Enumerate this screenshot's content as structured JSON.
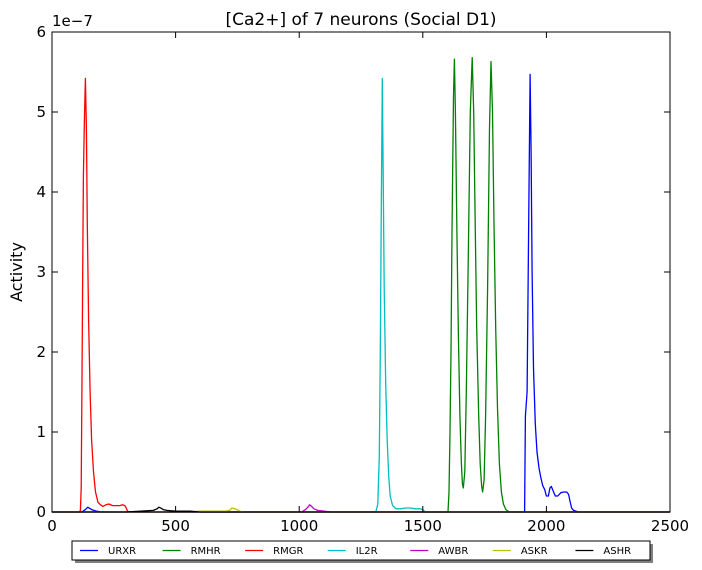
{
  "chart_data": {
    "type": "line",
    "title": "[Ca2+] of 7 neurons (Social D1)",
    "xlabel": "",
    "ylabel": "Activity",
    "xlim": [
      0,
      2500
    ],
    "ylim": [
      0,
      6
    ],
    "x_ticks": [
      0,
      500,
      1000,
      1500,
      2000,
      2500
    ],
    "y_ticks": [
      0,
      1,
      2,
      3,
      4,
      5,
      6
    ],
    "y_scale_label": "1e−7",
    "y_multiplier": 1e-07,
    "grid": false,
    "legend": "bottom-outside",
    "series": [
      {
        "name": "URXR",
        "color": "#0000ff",
        "points": [
          [
            0,
            0
          ],
          [
            120,
            0
          ],
          [
            135,
            0.03
          ],
          [
            145,
            0.06
          ],
          [
            160,
            0.03
          ],
          [
            180,
            0.01
          ],
          [
            200,
            0
          ],
          [
            1900,
            0
          ],
          [
            1912,
            0
          ],
          [
            1915,
            1.2
          ],
          [
            1922,
            1.5
          ],
          [
            1928,
            3.5
          ],
          [
            1934,
            5.47
          ],
          [
            1938,
            4.5
          ],
          [
            1942,
            3.0
          ],
          [
            1948,
            1.8
          ],
          [
            1955,
            1.1
          ],
          [
            1962,
            0.75
          ],
          [
            1970,
            0.55
          ],
          [
            1978,
            0.42
          ],
          [
            1985,
            0.33
          ],
          [
            1993,
            0.28
          ],
          [
            2000,
            0.2
          ],
          [
            2008,
            0.2
          ],
          [
            2014,
            0.3
          ],
          [
            2020,
            0.32
          ],
          [
            2028,
            0.26
          ],
          [
            2036,
            0.2
          ],
          [
            2046,
            0.2
          ],
          [
            2058,
            0.24
          ],
          [
            2070,
            0.25
          ],
          [
            2082,
            0.25
          ],
          [
            2090,
            0.22
          ],
          [
            2096,
            0.13
          ],
          [
            2102,
            0.05
          ],
          [
            2110,
            0.02
          ],
          [
            2130,
            0
          ],
          [
            2500,
            0
          ]
        ]
      },
      {
        "name": "RMHR",
        "color": "#008000",
        "points": [
          [
            0,
            0
          ],
          [
            1598,
            0
          ],
          [
            1602,
            0
          ],
          [
            1606,
            0.25
          ],
          [
            1610,
            1.0
          ],
          [
            1614,
            2.0
          ],
          [
            1618,
            3.5
          ],
          [
            1624,
            5.2
          ],
          [
            1628,
            5.66
          ],
          [
            1632,
            5.0
          ],
          [
            1638,
            3.5
          ],
          [
            1644,
            2.2
          ],
          [
            1650,
            1.2
          ],
          [
            1656,
            0.6
          ],
          [
            1660,
            0.35
          ],
          [
            1664,
            0.3
          ],
          [
            1670,
            0.5
          ],
          [
            1676,
            1.5
          ],
          [
            1684,
            3.2
          ],
          [
            1692,
            5.0
          ],
          [
            1700,
            5.68
          ],
          [
            1706,
            5.0
          ],
          [
            1712,
            3.6
          ],
          [
            1718,
            2.3
          ],
          [
            1726,
            1.2
          ],
          [
            1732,
            0.6
          ],
          [
            1738,
            0.33
          ],
          [
            1742,
            0.25
          ],
          [
            1748,
            0.4
          ],
          [
            1754,
            1.2
          ],
          [
            1762,
            2.8
          ],
          [
            1770,
            4.8
          ],
          [
            1776,
            5.63
          ],
          [
            1782,
            5.0
          ],
          [
            1788,
            3.6
          ],
          [
            1795,
            2.3
          ],
          [
            1802,
            1.3
          ],
          [
            1810,
            0.6
          ],
          [
            1818,
            0.25
          ],
          [
            1826,
            0.1
          ],
          [
            1836,
            0.03
          ],
          [
            1850,
            0
          ],
          [
            2500,
            0
          ]
        ]
      },
      {
        "name": "RMGR",
        "color": "#ff0000",
        "points": [
          [
            0,
            0
          ],
          [
            110,
            0
          ],
          [
            115,
            0.02
          ],
          [
            118,
            0.3
          ],
          [
            121,
            1.5
          ],
          [
            124,
            3.0
          ],
          [
            127,
            4.2
          ],
          [
            131,
            4.9
          ],
          [
            135,
            5.42
          ],
          [
            139,
            4.8
          ],
          [
            143,
            3.6
          ],
          [
            148,
            2.4
          ],
          [
            154,
            1.5
          ],
          [
            160,
            0.9
          ],
          [
            168,
            0.5
          ],
          [
            176,
            0.25
          ],
          [
            186,
            0.12
          ],
          [
            196,
            0.09
          ],
          [
            206,
            0.07
          ],
          [
            218,
            0.09
          ],
          [
            230,
            0.1
          ],
          [
            245,
            0.08
          ],
          [
            260,
            0.08
          ],
          [
            275,
            0.08
          ],
          [
            285,
            0.09
          ],
          [
            295,
            0.08
          ],
          [
            300,
            0.05
          ],
          [
            306,
            0.01
          ],
          [
            315,
            0
          ],
          [
            2500,
            0
          ]
        ]
      },
      {
        "name": "IL2R",
        "color": "#00bfbf",
        "points": [
          [
            0,
            0
          ],
          [
            1310,
            0
          ],
          [
            1318,
            0.1
          ],
          [
            1324,
            0.7
          ],
          [
            1328,
            2.0
          ],
          [
            1332,
            3.8
          ],
          [
            1336,
            5.42
          ],
          [
            1340,
            4.2
          ],
          [
            1344,
            2.8
          ],
          [
            1350,
            1.6
          ],
          [
            1356,
            0.9
          ],
          [
            1362,
            0.45
          ],
          [
            1368,
            0.2
          ],
          [
            1378,
            0.08
          ],
          [
            1392,
            0.04
          ],
          [
            1410,
            0.04
          ],
          [
            1430,
            0.05
          ],
          [
            1450,
            0.05
          ],
          [
            1470,
            0.04
          ],
          [
            1490,
            0.04
          ],
          [
            1500,
            0.03
          ],
          [
            1510,
            0
          ],
          [
            2500,
            0
          ]
        ]
      },
      {
        "name": "AWBR",
        "color": "#bf00bf",
        "points": [
          [
            0,
            0
          ],
          [
            1000,
            0
          ],
          [
            1010,
            0
          ],
          [
            1025,
            0.03
          ],
          [
            1035,
            0.06
          ],
          [
            1042,
            0.09
          ],
          [
            1050,
            0.07
          ],
          [
            1060,
            0.04
          ],
          [
            1075,
            0.02
          ],
          [
            1100,
            0.01
          ],
          [
            1130,
            0
          ],
          [
            2500,
            0
          ]
        ]
      },
      {
        "name": "ASKR",
        "color": "#bfbf00",
        "points": [
          [
            0,
            0
          ],
          [
            560,
            0
          ],
          [
            600,
            0.01
          ],
          [
            700,
            0.01
          ],
          [
            718,
            0.02
          ],
          [
            728,
            0.05
          ],
          [
            738,
            0.04
          ],
          [
            748,
            0.03
          ],
          [
            760,
            0.01
          ],
          [
            775,
            0
          ],
          [
            2500,
            0
          ]
        ]
      },
      {
        "name": "ASHR",
        "color": "#000000",
        "points": [
          [
            0,
            0
          ],
          [
            300,
            0
          ],
          [
            360,
            0.01
          ],
          [
            410,
            0.02
          ],
          [
            425,
            0.04
          ],
          [
            432,
            0.06
          ],
          [
            440,
            0.05
          ],
          [
            450,
            0.03
          ],
          [
            465,
            0.02
          ],
          [
            500,
            0.01
          ],
          [
            560,
            0.01
          ],
          [
            600,
            0
          ],
          [
            2500,
            0
          ]
        ]
      }
    ]
  }
}
